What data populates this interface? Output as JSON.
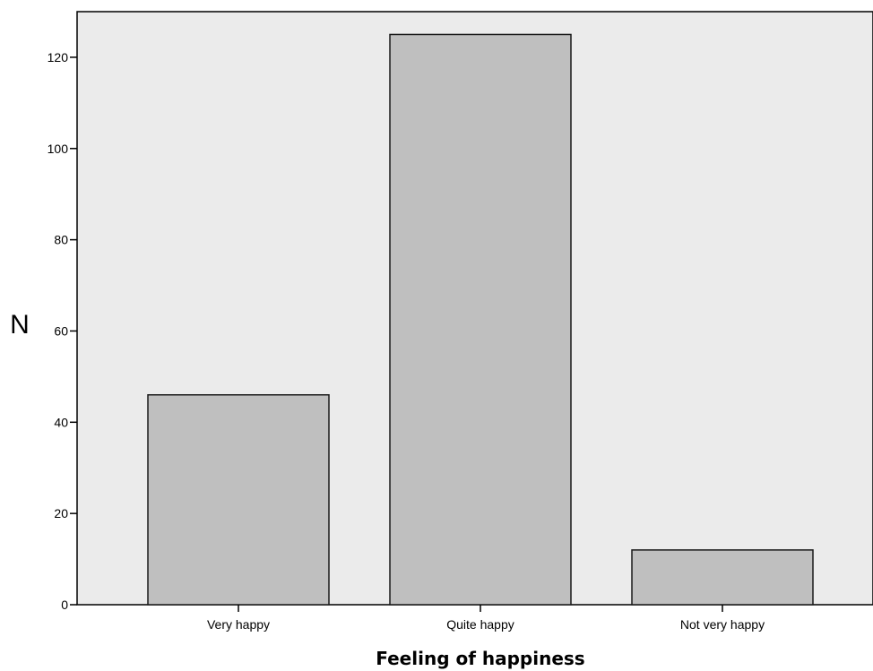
{
  "chart_data": {
    "type": "bar",
    "title": "",
    "xlabel": "Feeling of happiness",
    "ylabel": "N",
    "categories": [
      "Very happy",
      "Quite happy",
      "Not very happy"
    ],
    "values": [
      46,
      125,
      12
    ],
    "ylim": [
      0,
      130
    ],
    "yticks": [
      0,
      20,
      40,
      60,
      80,
      100,
      120
    ],
    "grid": false,
    "legend": "none",
    "colors": {
      "plot_background": "#ebebeb",
      "bar_fill": "#bfbfbf",
      "bar_stroke": "#1a1a1a",
      "axis": "#000000"
    }
  }
}
